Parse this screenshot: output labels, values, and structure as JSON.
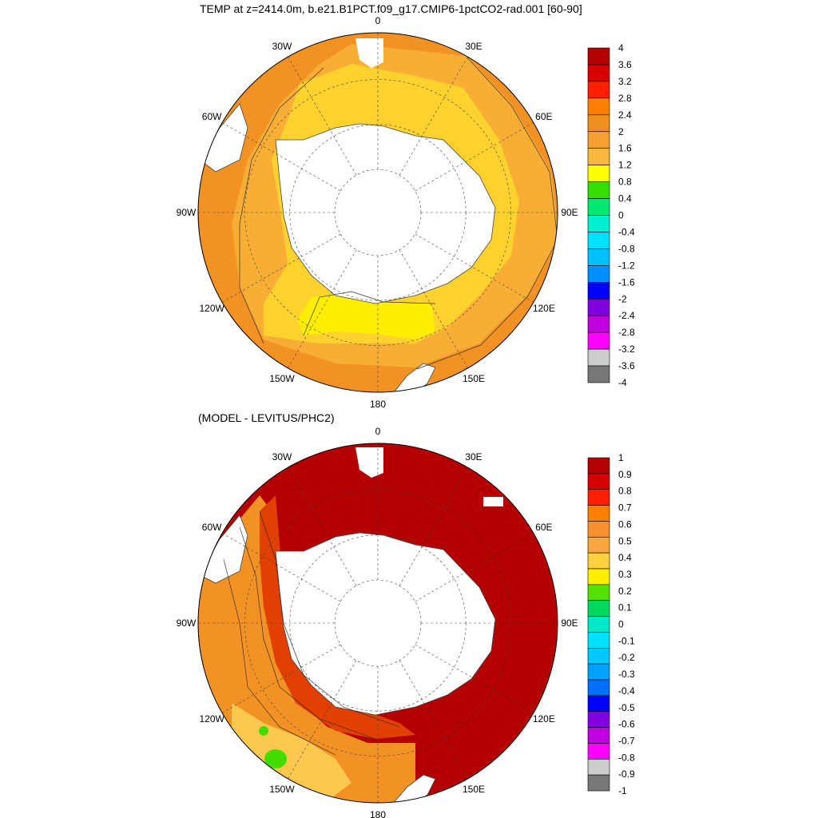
{
  "panels": [
    {
      "title": "TEMP at z=2414.0m, b.e21.B1PCT.f09_g17.CMIP6-1pctCO2-rad.001 [60-90]",
      "lon_labels": [
        "0",
        "30E",
        "60E",
        "90E",
        "120E",
        "150E",
        "180",
        "150W",
        "120W",
        "90W",
        "60W",
        "30W"
      ],
      "colorbar": {
        "labels": [
          "4",
          "3.6",
          "3.2",
          "2.8",
          "2.4",
          "2",
          "1.6",
          "1.2",
          "0.8",
          "0.4",
          "0",
          "-0.4",
          "-0.8",
          "-1.2",
          "-1.6",
          "-2",
          "-2.4",
          "-2.8",
          "-3.2",
          "-3.6",
          "-4"
        ],
        "colors": [
          "#b30000",
          "#d90000",
          "#ff2000",
          "#ff8000",
          "#f09020",
          "#f4a030",
          "#f9b93a",
          "#ffff00",
          "#33e000",
          "#00e870",
          "#00f0d0",
          "#00e0ff",
          "#00c0ff",
          "#0090ff",
          "#0000ff",
          "#8000e0",
          "#c000e0",
          "#ff00ff",
          "#cccccc",
          "#777777"
        ]
      },
      "field_colors": {
        "outer": "#f39224",
        "middle": "#f8ae34",
        "inner": "#fdd22e",
        "core": "#ffee00"
      }
    },
    {
      "title": "(MODEL - LEVITUS/PHC2)",
      "lon_labels": [
        "0",
        "30E",
        "60E",
        "90E",
        "120E",
        "150E",
        "180",
        "150W",
        "120W",
        "90W",
        "60W",
        "30W"
      ],
      "colorbar": {
        "labels": [
          "1",
          "0.9",
          "0.8",
          "0.7",
          "0.6",
          "0.5",
          "0.4",
          "0.3",
          "0.2",
          "0.1",
          "0",
          "-0.1",
          "-0.2",
          "-0.3",
          "-0.4",
          "-0.5",
          "-0.6",
          "-0.7",
          "-0.8",
          "-0.9",
          "-1"
        ],
        "colors": [
          "#b30000",
          "#d60000",
          "#ff2000",
          "#ff8000",
          "#f79030",
          "#f9a840",
          "#ffd040",
          "#ffee00",
          "#55e000",
          "#00d860",
          "#00e8c8",
          "#00e0ff",
          "#00c8ff",
          "#00a0ff",
          "#0070ff",
          "#0000ff",
          "#8000e0",
          "#c000e0",
          "#ff00ff",
          "#cccccc",
          "#777777"
        ]
      },
      "field_colors": {
        "main": "#b40000",
        "warm": "#e14000",
        "mid": "#f39224",
        "light": "#fcc850",
        "green": "#44dd00"
      }
    }
  ]
}
